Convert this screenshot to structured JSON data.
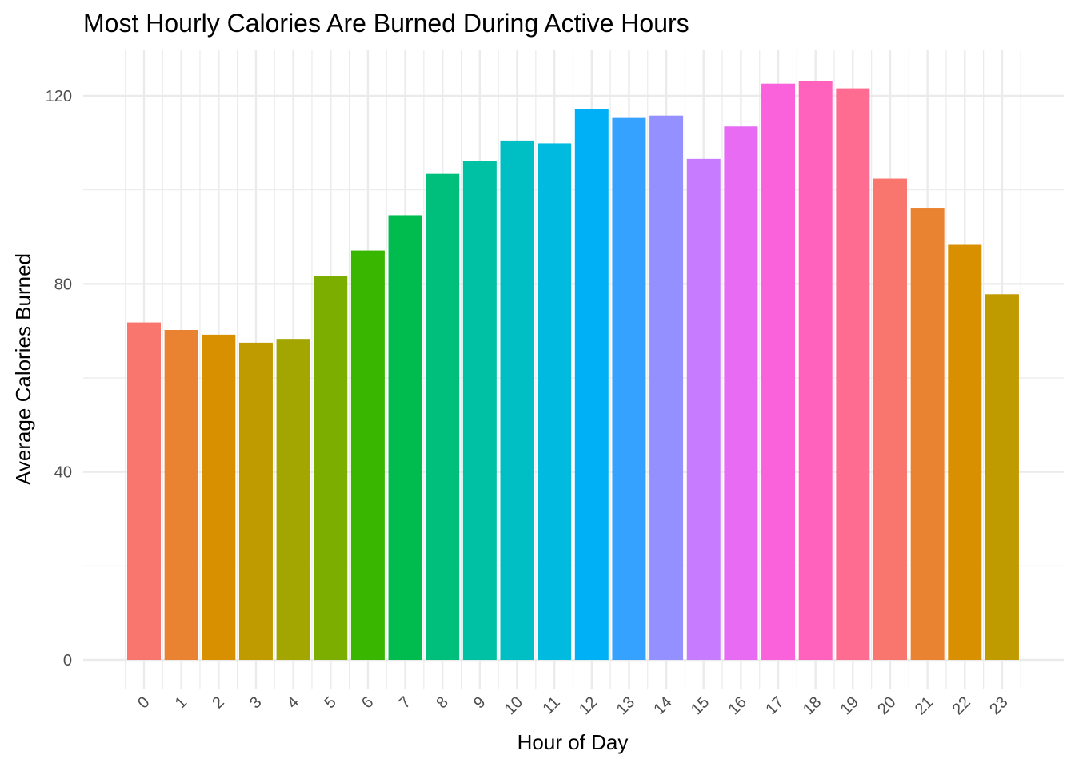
{
  "chart_data": {
    "type": "bar",
    "title": "Most Hourly Calories Are Burned During Active Hours",
    "xlabel": "Hour of Day",
    "ylabel": "Average Calories Burned",
    "categories": [
      "0",
      "1",
      "2",
      "3",
      "4",
      "5",
      "6",
      "7",
      "8",
      "9",
      "10",
      "11",
      "12",
      "13",
      "14",
      "15",
      "16",
      "17",
      "18",
      "19",
      "20",
      "21",
      "22",
      "23"
    ],
    "values": [
      71.8,
      70.2,
      69.2,
      67.5,
      68.3,
      81.7,
      87.1,
      94.6,
      103.4,
      106.1,
      110.5,
      109.9,
      117.2,
      115.3,
      115.8,
      106.6,
      113.5,
      122.6,
      123.1,
      121.6,
      102.4,
      96.2,
      88.3,
      77.8
    ],
    "colors": [
      "#F8766D",
      "#EA8331",
      "#D89000",
      "#C09B00",
      "#A3A500",
      "#7CAE00",
      "#39B600",
      "#00BB4E",
      "#00BF7D",
      "#00C1A3",
      "#00BFC4",
      "#00BAE0",
      "#00B0F6",
      "#35A2FF",
      "#9590FF",
      "#C77CFF",
      "#E76BF3",
      "#FA62DB",
      "#FF62BC",
      "#FF6C91",
      "#F8766D",
      "#EA8331",
      "#D89000",
      "#C09B00"
    ],
    "yticks": [
      0,
      40,
      80,
      120
    ],
    "ylim": [
      0,
      129
    ],
    "grid": true,
    "legend": "none"
  }
}
